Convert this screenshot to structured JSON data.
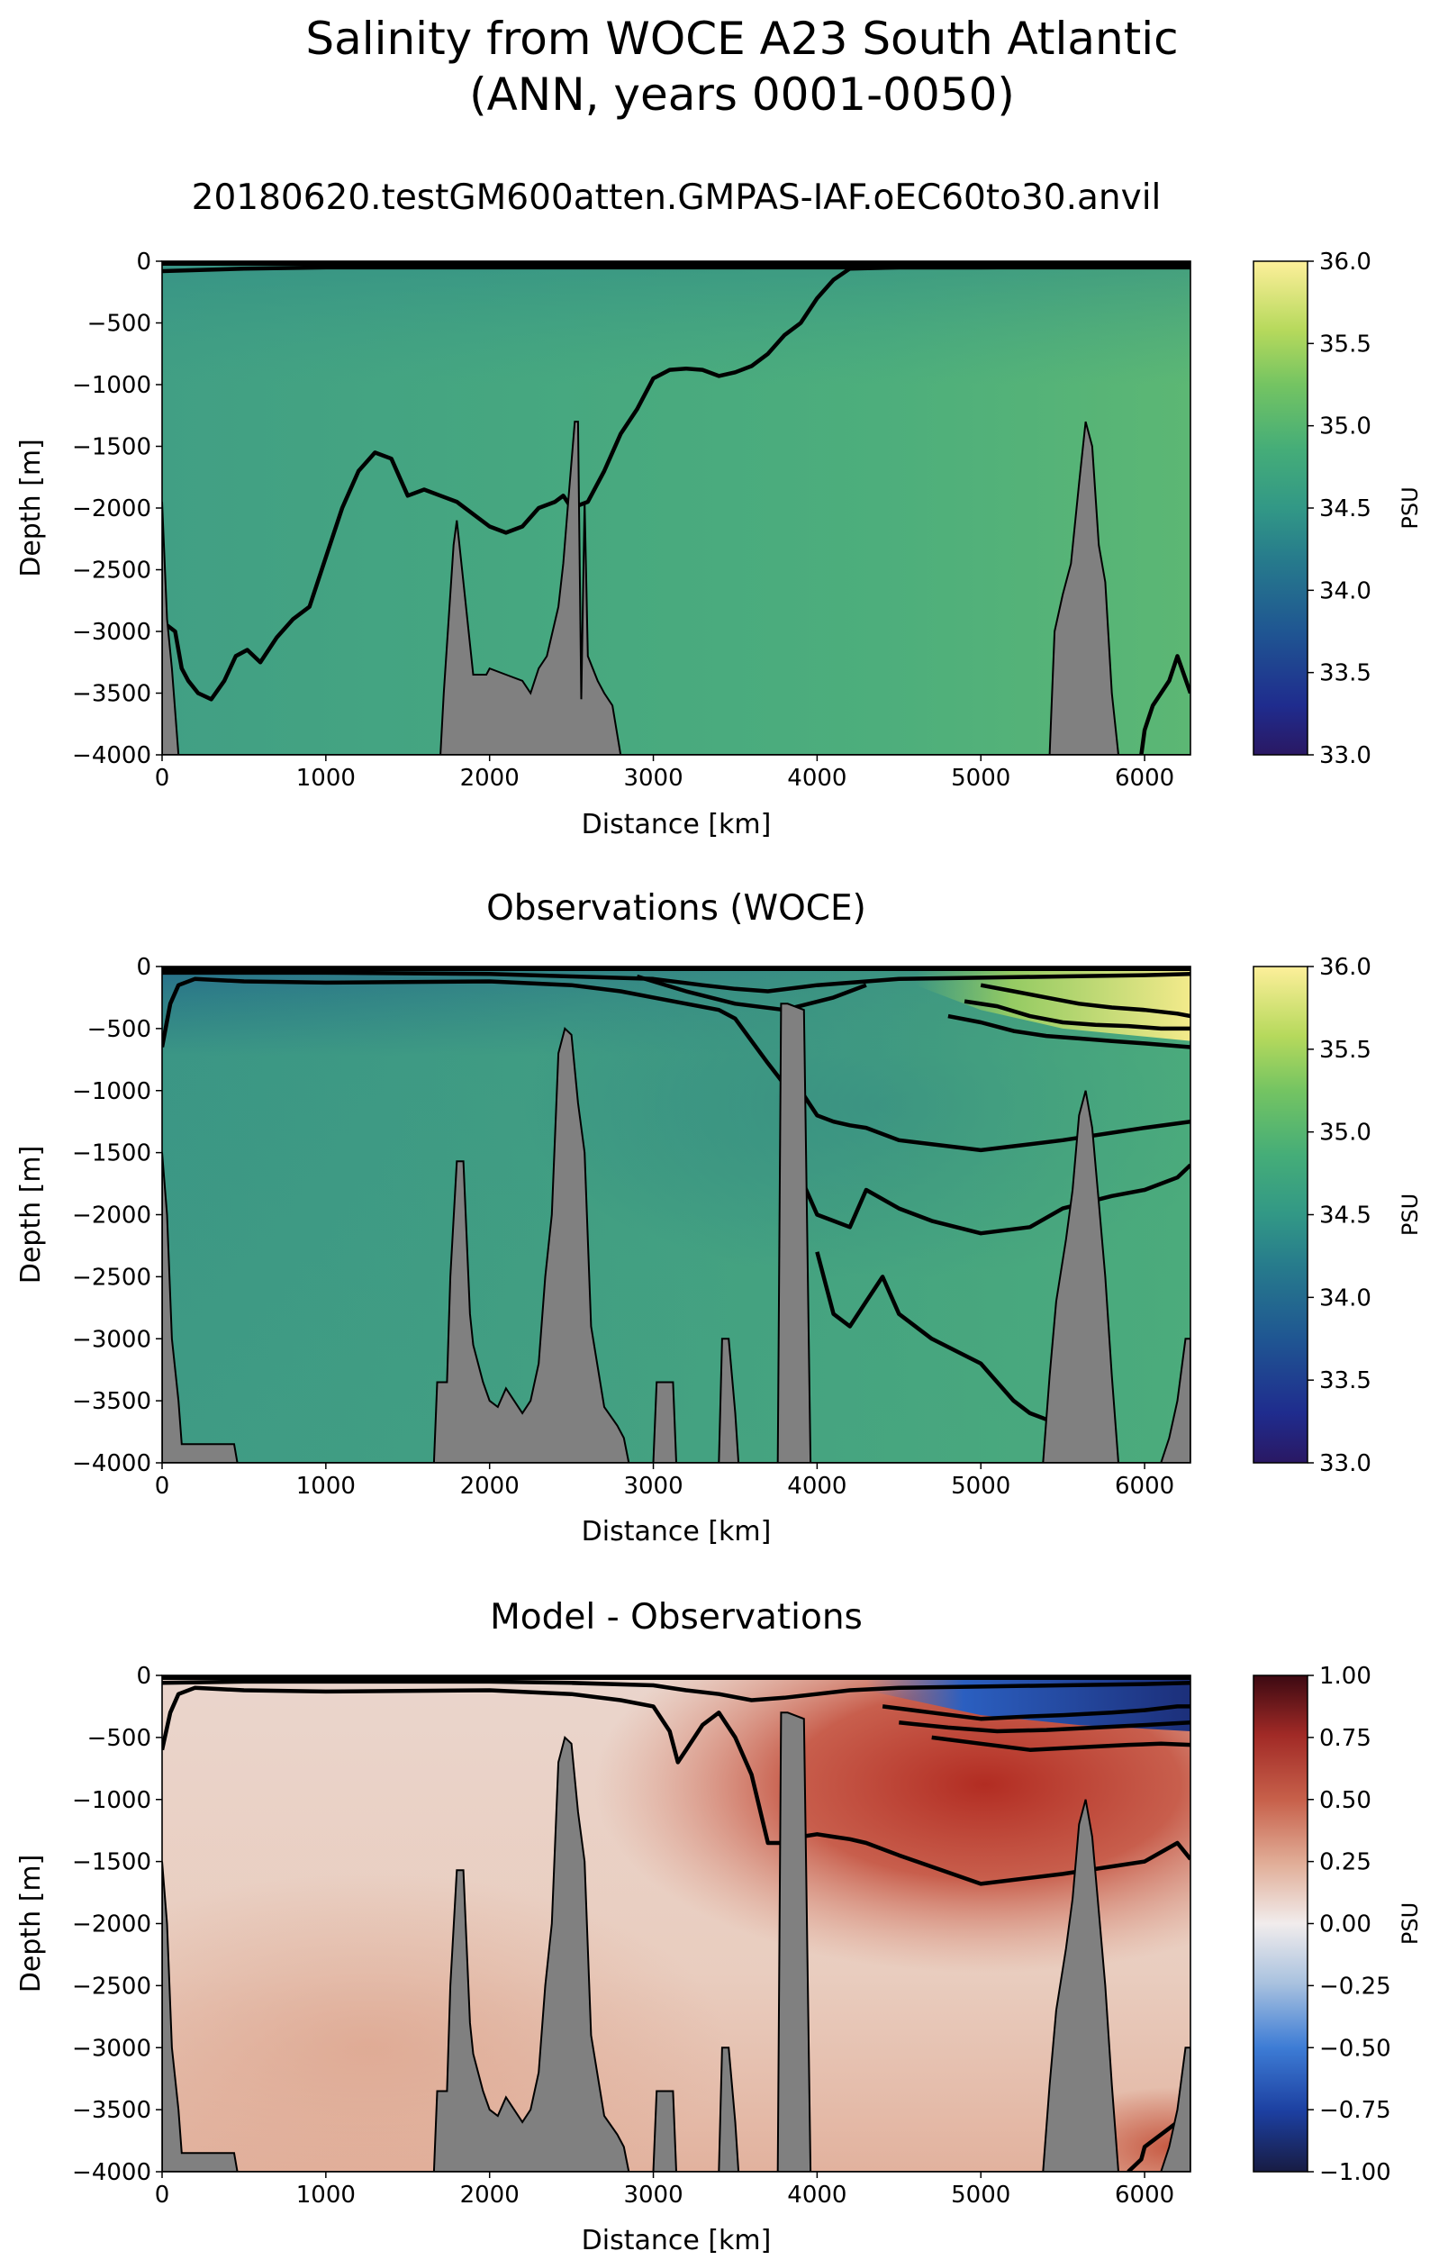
{
  "figure": {
    "title_line1": "Salinity from WOCE A23 South Atlantic",
    "title_line2": "(ANN, years 0001-0050)"
  },
  "chart_data": [
    {
      "type": "heatmap",
      "title": "20180620.testGM600atten.GMPAS-IAF.oEC60to30.anvil",
      "xlabel": "Distance [km]",
      "ylabel": "Depth [m]",
      "xlim": [
        0,
        6280
      ],
      "ylim": [
        -4000,
        0
      ],
      "xticks": [
        0,
        1000,
        2000,
        3000,
        4000,
        5000,
        6000
      ],
      "yticks": [
        0,
        -500,
        -1000,
        -1500,
        -2000,
        -2500,
        -3000,
        -3500,
        -4000
      ],
      "colorbar": {
        "label": "PSU",
        "range": [
          33.0,
          36.0
        ],
        "ticks": [
          "33.0",
          "33.5",
          "34.0",
          "34.5",
          "35.0",
          "35.5",
          "36.0"
        ],
        "colormap": "haline"
      },
      "field_colors": {
        "west": "#3f9e84",
        "center": "#4aab7e",
        "east": "#58b476"
      },
      "topography_color": "#808080",
      "contour_color": "#000000",
      "contours": [
        {
          "x": [
            0,
            30,
            80,
            120,
            160,
            220,
            300,
            380,
            450,
            520,
            600,
            700,
            800,
            900,
            1000,
            1100,
            1200,
            1300,
            1400,
            1500,
            1600,
            1700,
            1800,
            1900,
            2000,
            2100,
            2200,
            2300,
            2400,
            2450,
            2500,
            2600,
            2700,
            2800,
            2900,
            3000,
            3100,
            3200,
            3300,
            3400,
            3500,
            3600,
            3700,
            3800,
            3900,
            4000,
            4100,
            4200,
            4500,
            5000,
            5500,
            6000,
            6280
          ],
          "y": [
            -2900,
            -2950,
            -3000,
            -3300,
            -3400,
            -3500,
            -3550,
            -3400,
            -3200,
            -3150,
            -3250,
            -3050,
            -2900,
            -2800,
            -2400,
            -2000,
            -1700,
            -1550,
            -1600,
            -1900,
            -1850,
            -1900,
            -1950,
            -2050,
            -2150,
            -2200,
            -2150,
            -2000,
            -1950,
            -1900,
            -2000,
            -1950,
            -1700,
            -1400,
            -1200,
            -950,
            -880,
            -870,
            -880,
            -930,
            -900,
            -850,
            -750,
            -600,
            -500,
            -300,
            -150,
            -60,
            -50,
            -50,
            -50,
            -50,
            -50
          ]
        },
        {
          "x": [
            0,
            500,
            1000,
            2000,
            3000,
            4000,
            5000,
            6000,
            6280
          ],
          "y": [
            -80,
            -60,
            -50,
            -50,
            -50,
            -50,
            -50,
            -40,
            -40
          ]
        },
        {
          "x": [
            6280,
            6200,
            6150,
            6100,
            6050,
            6000,
            5980
          ],
          "y": [
            -3500,
            -3200,
            -3400,
            -3500,
            -3600,
            -3800,
            -4000
          ]
        }
      ],
      "topography": {
        "x": [
          0,
          30,
          60,
          100,
          1700,
          1720,
          1780,
          1800,
          1840,
          1900,
          1980,
          2000,
          2100,
          2200,
          2250,
          2300,
          2350,
          2420,
          2450,
          2480,
          2520,
          2540,
          2560,
          2580,
          2600,
          2660,
          2700,
          2750,
          2800,
          5420,
          5450,
          5500,
          5550,
          5600,
          5640,
          5680,
          5720,
          5760,
          5800,
          5840,
          6280
        ],
        "y": [
          -1950,
          -2900,
          -3300,
          -4000,
          -4000,
          -3500,
          -2300,
          -2100,
          -2600,
          -3350,
          -3350,
          -3300,
          -3350,
          -3400,
          -3500,
          -3300,
          -3200,
          -2800,
          -2450,
          -1950,
          -1300,
          -1300,
          -3550,
          -1950,
          -3200,
          -3400,
          -3500,
          -3600,
          -4000,
          -4000,
          -3000,
          -2700,
          -2450,
          -1800,
          -1300,
          -1500,
          -2300,
          -2600,
          -3500,
          -4000,
          -4000
        ]
      }
    },
    {
      "type": "heatmap",
      "title": "Observations (WOCE)",
      "xlabel": "Distance [km]",
      "ylabel": "Depth [m]",
      "xlim": [
        0,
        6280
      ],
      "ylim": [
        -4000,
        0
      ],
      "xticks": [
        0,
        1000,
        2000,
        3000,
        4000,
        5000,
        6000
      ],
      "yticks": [
        0,
        -500,
        -1000,
        -1500,
        -2000,
        -2500,
        -3000,
        -3500,
        -4000
      ],
      "colorbar": {
        "label": "PSU",
        "range": [
          33.0,
          36.0
        ],
        "ticks": [
          "33.0",
          "33.5",
          "34.0",
          "34.5",
          "35.0",
          "35.5",
          "36.0"
        ],
        "colormap": "haline"
      },
      "field_colors": {
        "deep": "#3d9a84",
        "intermediate_east": "#2f8087",
        "surface_west": "#2a6f8a",
        "warm_surface_east": "#d9e374"
      },
      "topography_color": "#808080",
      "contour_color": "#000000",
      "contours": [
        {
          "x": [
            0,
            50,
            100,
            200,
            500,
            1000,
            2000,
            2500,
            2800,
            3000,
            3200,
            3400,
            3500,
            3600,
            3700,
            3800,
            3900,
            4000,
            4100,
            4200,
            4300,
            4500,
            5000,
            5500,
            6000,
            6280
          ],
          "y": [
            -650,
            -300,
            -150,
            -100,
            -120,
            -130,
            -120,
            -150,
            -200,
            -250,
            -300,
            -350,
            -420,
            -600,
            -780,
            -950,
            -1000,
            -1200,
            -1250,
            -1280,
            -1300,
            -1400,
            -1480,
            -1400,
            -1300,
            -1250
          ]
        },
        {
          "x": [
            3900,
            4000,
            4100,
            4200,
            4300,
            4500,
            4700,
            5000,
            5300,
            5500,
            5800,
            6000,
            6200,
            6280
          ],
          "y": [
            -1700,
            -2000,
            -2050,
            -2100,
            -1800,
            -1950,
            -2050,
            -2150,
            -2100,
            -1950,
            -1850,
            -1800,
            -1700,
            -1600
          ]
        },
        {
          "x": [
            4000,
            4100,
            4200,
            4300,
            4400,
            4500,
            4700,
            5000,
            5200,
            5300,
            5400,
            5500
          ],
          "y": [
            -2300,
            -2800,
            -2900,
            -2700,
            -2500,
            -2800,
            -3000,
            -3200,
            -3500,
            -3600,
            -3650,
            -3700
          ]
        },
        {
          "x": [
            0,
            500,
            1000,
            2000,
            2500,
            3000,
            3300,
            3500,
            3700,
            4000,
            4500,
            5000,
            5500,
            6000,
            6280
          ],
          "y": [
            -50,
            -50,
            -50,
            -60,
            -80,
            -100,
            -150,
            -180,
            -200,
            -150,
            -100,
            -90,
            -80,
            -70,
            -60
          ]
        },
        {
          "x": [
            5000,
            5200,
            5400,
            5600,
            5800,
            6000,
            6200,
            6280
          ],
          "y": [
            -150,
            -200,
            -250,
            -300,
            -330,
            -350,
            -380,
            -400
          ]
        },
        {
          "x": [
            4900,
            5100,
            5300,
            5500,
            5700,
            5900,
            6100,
            6280
          ],
          "y": [
            -280,
            -320,
            -400,
            -450,
            -470,
            -480,
            -500,
            -500
          ]
        },
        {
          "x": [
            4800,
            5000,
            5200,
            5400,
            5600,
            5800,
            6000,
            6280
          ],
          "y": [
            -400,
            -450,
            -520,
            -560,
            -580,
            -600,
            -620,
            -650
          ]
        },
        {
          "x": [
            2900,
            3200,
            3500,
            3800,
            4100,
            4300
          ],
          "y": [
            -80,
            -200,
            -300,
            -350,
            -250,
            -150
          ]
        }
      ],
      "topography": {
        "x": [
          0,
          30,
          60,
          100,
          120,
          440,
          460,
          1660,
          1680,
          1740,
          1760,
          1800,
          1840,
          1880,
          1900,
          1960,
          2000,
          2050,
          2100,
          2200,
          2250,
          2300,
          2340,
          2380,
          2420,
          2460,
          2500,
          2540,
          2580,
          2620,
          2700,
          2780,
          2820,
          2850,
          3000,
          3020,
          3120,
          3140,
          3400,
          3420,
          3460,
          3500,
          3520,
          3760,
          3780,
          3820,
          3920,
          3960,
          5380,
          5420,
          5460,
          5520,
          5560,
          5600,
          5640,
          5680,
          5720,
          5760,
          5800,
          5840,
          6100,
          6150,
          6200,
          6250,
          6280
        ],
        "y": [
          -1500,
          -2000,
          -3000,
          -3500,
          -3850,
          -3850,
          -4000,
          -4000,
          -3350,
          -3350,
          -2500,
          -1570,
          -1570,
          -2800,
          -3050,
          -3350,
          -3500,
          -3550,
          -3400,
          -3600,
          -3500,
          -3200,
          -2500,
          -2000,
          -700,
          -500,
          -550,
          -1100,
          -1500,
          -2900,
          -3550,
          -3700,
          -3800,
          -4000,
          -4000,
          -3350,
          -3350,
          -4000,
          -4000,
          -3000,
          -3000,
          -3600,
          -4000,
          -4000,
          -300,
          -300,
          -350,
          -4000,
          -4000,
          -3300,
          -2700,
          -2200,
          -1800,
          -1200,
          -1000,
          -1300,
          -1900,
          -2500,
          -3300,
          -4000,
          -4000,
          -3800,
          -3500,
          -3000,
          -3000
        ]
      }
    },
    {
      "type": "heatmap",
      "title": "Model - Observations",
      "xlabel": "Distance [km]",
      "ylabel": "Depth [m]",
      "xlim": [
        0,
        6280
      ],
      "ylim": [
        -4000,
        0
      ],
      "xticks": [
        0,
        1000,
        2000,
        3000,
        4000,
        5000,
        6000
      ],
      "yticks": [
        0,
        -500,
        -1000,
        -1500,
        -2000,
        -2500,
        -3000,
        -3500,
        -4000
      ],
      "colorbar": {
        "label": "PSU",
        "range": [
          -1.0,
          1.0
        ],
        "ticks": [
          "-1.00",
          "-0.75",
          "-0.50",
          "-0.25",
          "0.00",
          "0.25",
          "0.50",
          "0.75",
          "1.00"
        ],
        "colormap": "balance"
      },
      "field_colors": {
        "background": "#efd8cf",
        "deep_west": "#e4b7a3",
        "intermediate_east": "#b83a2a",
        "surface_east": "#2f63b8"
      },
      "topography_color": "#808080",
      "contour_color": "#000000",
      "contours": [
        {
          "x": [
            0,
            50,
            100,
            200,
            500,
            1000,
            2000,
            2500,
            2800,
            3000,
            3100,
            3150,
            3200,
            3300,
            3400,
            3500,
            3600,
            3700,
            3800,
            3900,
            4000,
            4100,
            4200,
            4300,
            4500,
            5000,
            5500,
            6000,
            6200,
            6280
          ],
          "y": [
            -600,
            -300,
            -150,
            -100,
            -120,
            -130,
            -120,
            -150,
            -200,
            -250,
            -450,
            -700,
            -600,
            -400,
            -300,
            -500,
            -800,
            -1350,
            -1350,
            -1300,
            -1280,
            -1300,
            -1320,
            -1350,
            -1450,
            -1680,
            -1600,
            -1500,
            -1350,
            -1480
          ]
        },
        {
          "x": [
            0,
            500,
            1000,
            2000,
            2500,
            3000,
            3200,
            3400,
            3600,
            3800,
            4000,
            4200,
            4500,
            5000,
            5500,
            6000,
            6280
          ],
          "y": [
            -60,
            -50,
            -50,
            -50,
            -60,
            -80,
            -120,
            -150,
            -200,
            -180,
            -150,
            -120,
            -100,
            -90,
            -80,
            -70,
            -60
          ]
        },
        {
          "x": [
            4400,
            4700,
            5000,
            5300,
            5500,
            5800,
            6000,
            6200,
            6280
          ],
          "y": [
            -250,
            -300,
            -350,
            -330,
            -320,
            -300,
            -280,
            -250,
            -250
          ]
        },
        {
          "x": [
            4500,
            4800,
            5100,
            5400,
            5700,
            6000,
            6280
          ],
          "y": [
            -380,
            -420,
            -450,
            -440,
            -420,
            -400,
            -380
          ]
        },
        {
          "x": [
            4700,
            5000,
            5300,
            5600,
            5900,
            6100,
            6280
          ],
          "y": [
            -500,
            -550,
            -600,
            -580,
            -560,
            -550,
            -560
          ]
        },
        {
          "x": [
            6280,
            6200,
            6100,
            6000,
            5980,
            5900
          ],
          "y": [
            -3300,
            -3600,
            -3700,
            -3800,
            -3900,
            -4000
          ]
        }
      ],
      "topography": {
        "x": [
          0,
          30,
          60,
          100,
          120,
          440,
          460,
          1660,
          1680,
          1740,
          1760,
          1800,
          1840,
          1880,
          1900,
          1960,
          2000,
          2050,
          2100,
          2200,
          2250,
          2300,
          2340,
          2380,
          2420,
          2460,
          2500,
          2540,
          2580,
          2620,
          2700,
          2780,
          2820,
          2850,
          3000,
          3020,
          3120,
          3140,
          3400,
          3420,
          3460,
          3500,
          3520,
          3760,
          3780,
          3820,
          3920,
          3960,
          5380,
          5420,
          5460,
          5520,
          5560,
          5600,
          5640,
          5680,
          5720,
          5760,
          5800,
          5840,
          6100,
          6150,
          6200,
          6250,
          6280
        ],
        "y": [
          -1500,
          -2000,
          -3000,
          -3500,
          -3850,
          -3850,
          -4000,
          -4000,
          -3350,
          -3350,
          -2500,
          -1570,
          -1570,
          -2800,
          -3050,
          -3350,
          -3500,
          -3550,
          -3400,
          -3600,
          -3500,
          -3200,
          -2500,
          -2000,
          -700,
          -500,
          -550,
          -1100,
          -1500,
          -2900,
          -3550,
          -3700,
          -3800,
          -4000,
          -4000,
          -3350,
          -3350,
          -4000,
          -4000,
          -3000,
          -3000,
          -3600,
          -4000,
          -4000,
          -300,
          -300,
          -350,
          -4000,
          -4000,
          -3300,
          -2700,
          -2200,
          -1800,
          -1200,
          -1000,
          -1300,
          -1900,
          -2500,
          -3300,
          -4000,
          -4000,
          -3800,
          -3500,
          -3000,
          -3000
        ]
      }
    }
  ]
}
